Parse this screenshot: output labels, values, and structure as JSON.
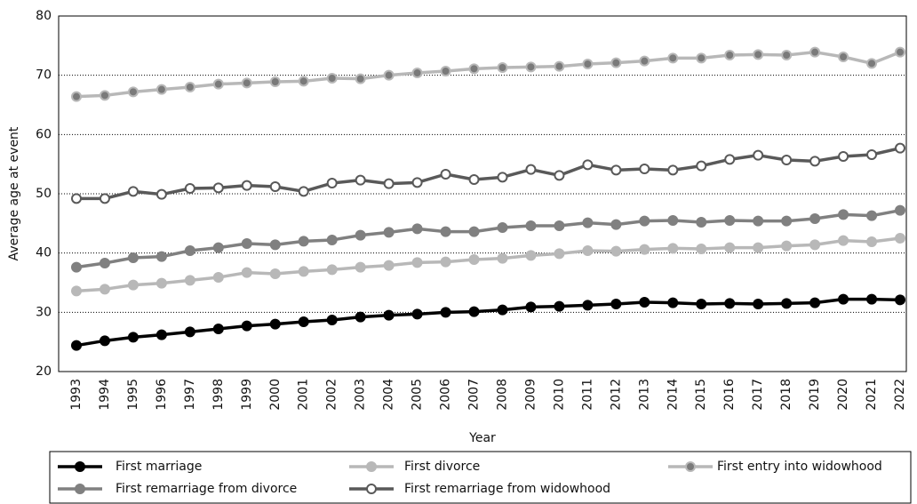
{
  "chart_data": {
    "type": "line",
    "xlabel": "Year",
    "ylabel": "Average age at event",
    "categories": [
      "1993",
      "1994",
      "1995",
      "1996",
      "1997",
      "1998",
      "1999",
      "2000",
      "2001",
      "2002",
      "2003",
      "2004",
      "2005",
      "2006",
      "2007",
      "2008",
      "2009",
      "2010",
      "2011",
      "2012",
      "2013",
      "2014",
      "2015",
      "2016",
      "2017",
      "2018",
      "2019",
      "2020",
      "2021",
      "2022"
    ],
    "ylim": [
      20,
      80
    ],
    "yticks": [
      20,
      30,
      40,
      50,
      60,
      70,
      80
    ],
    "grid": true,
    "legend": "bottom",
    "series": [
      {
        "name": "First marriage",
        "color": "#000000",
        "marker_fill": "#000000",
        "values": [
          24.4,
          25.2,
          25.8,
          26.2,
          26.7,
          27.2,
          27.7,
          28.0,
          28.4,
          28.7,
          29.2,
          29.5,
          29.7,
          30.0,
          30.1,
          30.4,
          30.9,
          31.0,
          31.2,
          31.4,
          31.7,
          31.6,
          31.4,
          31.5,
          31.4,
          31.5,
          31.6,
          32.2,
          32.2,
          32.1
        ]
      },
      {
        "name": "First divorce",
        "color": "#b8b8b8",
        "marker_fill": "#b8b8b8",
        "values": [
          33.6,
          33.9,
          34.6,
          34.9,
          35.4,
          35.9,
          36.7,
          36.5,
          36.9,
          37.2,
          37.6,
          37.9,
          38.4,
          38.5,
          38.9,
          39.1,
          39.6,
          39.9,
          40.4,
          40.3,
          40.6,
          40.8,
          40.7,
          40.9,
          40.9,
          41.2,
          41.4,
          42.1,
          41.9,
          42.5
        ]
      },
      {
        "name": "First entry into widowhood",
        "color": "#b8b8b8",
        "marker_fill": "#7a7a7a",
        "values": [
          66.4,
          66.6,
          67.2,
          67.6,
          68.0,
          68.5,
          68.7,
          68.9,
          69.0,
          69.5,
          69.4,
          70.0,
          70.4,
          70.7,
          71.1,
          71.3,
          71.4,
          71.5,
          71.9,
          72.1,
          72.4,
          72.9,
          72.9,
          73.4,
          73.5,
          73.4,
          73.9,
          73.1,
          72.0,
          73.9
        ]
      },
      {
        "name": "First remarriage from divorce",
        "color": "#808080",
        "marker_fill": "#808080",
        "values": [
          37.6,
          38.3,
          39.2,
          39.4,
          40.4,
          40.9,
          41.6,
          41.4,
          42.0,
          42.2,
          43.0,
          43.5,
          44.1,
          43.6,
          43.6,
          44.3,
          44.6,
          44.6,
          45.1,
          44.8,
          45.4,
          45.5,
          45.2,
          45.5,
          45.4,
          45.4,
          45.8,
          46.5,
          46.3,
          47.2
        ]
      },
      {
        "name": "First remarriage from widowhood",
        "color": "#595959",
        "marker_fill": "#ffffff",
        "values": [
          49.2,
          49.2,
          50.4,
          49.9,
          50.9,
          51.0,
          51.4,
          51.2,
          50.4,
          51.8,
          52.3,
          51.7,
          51.9,
          53.3,
          52.4,
          52.8,
          54.1,
          53.1,
          54.9,
          54.0,
          54.2,
          54.0,
          54.7,
          55.8,
          56.5,
          55.7,
          55.5,
          56.3,
          56.6,
          57.7
        ]
      }
    ]
  }
}
